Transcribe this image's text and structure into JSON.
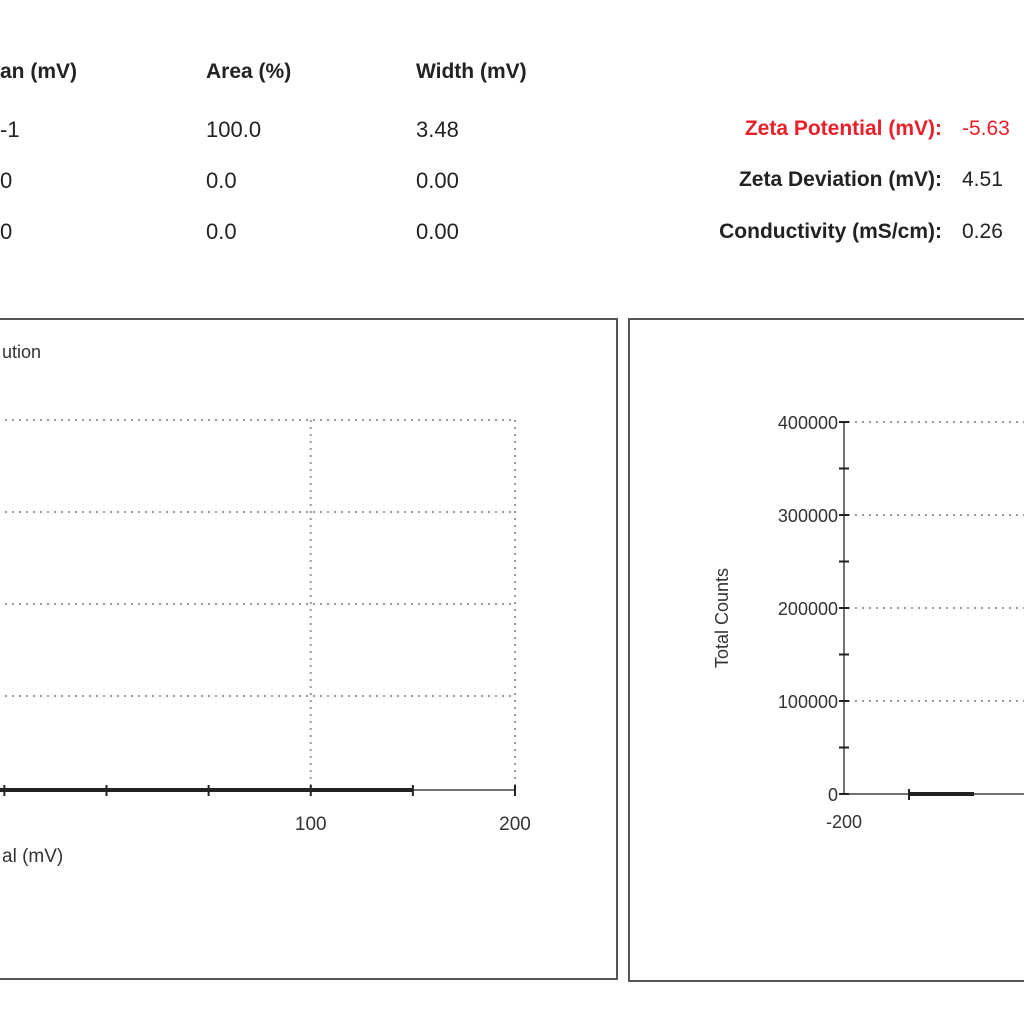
{
  "table": {
    "headers": [
      "an (mV)",
      "Area (%)",
      "Width (mV)"
    ],
    "rows": [
      [
        "-1",
        "100.0",
        "3.48"
      ],
      [
        "0",
        "0.0",
        "0.00"
      ],
      [
        "0",
        "0.0",
        "0.00"
      ]
    ]
  },
  "results": [
    {
      "label": "Zeta Potential (mV):",
      "value": "-5.63",
      "highlight": true
    },
    {
      "label": "Zeta Deviation (mV):",
      "value": "4.51",
      "highlight": false
    },
    {
      "label": "Conductivity (mS/cm):",
      "value": "0.26",
      "highlight": false
    }
  ],
  "colors": {
    "highlight": "#e8202a",
    "grid": "#9a9a9a",
    "axis": "#222222"
  },
  "chart_data": [
    {
      "type": "line",
      "title": "ution",
      "xlabel": "al (mV)",
      "ylabel": "",
      "x_ticks": [
        100,
        200
      ],
      "xlim": [
        -200,
        200
      ],
      "grid": true,
      "series": [
        {
          "x": [
            -200,
            150
          ],
          "y": [
            0,
            0
          ]
        }
      ]
    },
    {
      "type": "line",
      "title": "",
      "xlabel": "",
      "ylabel": "Total Counts",
      "y_ticks": [
        0,
        100000,
        200000,
        300000,
        400000
      ],
      "x_ticks": [
        -200
      ],
      "ylim": [
        0,
        400000
      ],
      "xlim": [
        -200,
        200
      ],
      "grid": true,
      "series": [
        {
          "x": [
            -150,
            -100
          ],
          "y": [
            0,
            0
          ]
        }
      ]
    }
  ]
}
